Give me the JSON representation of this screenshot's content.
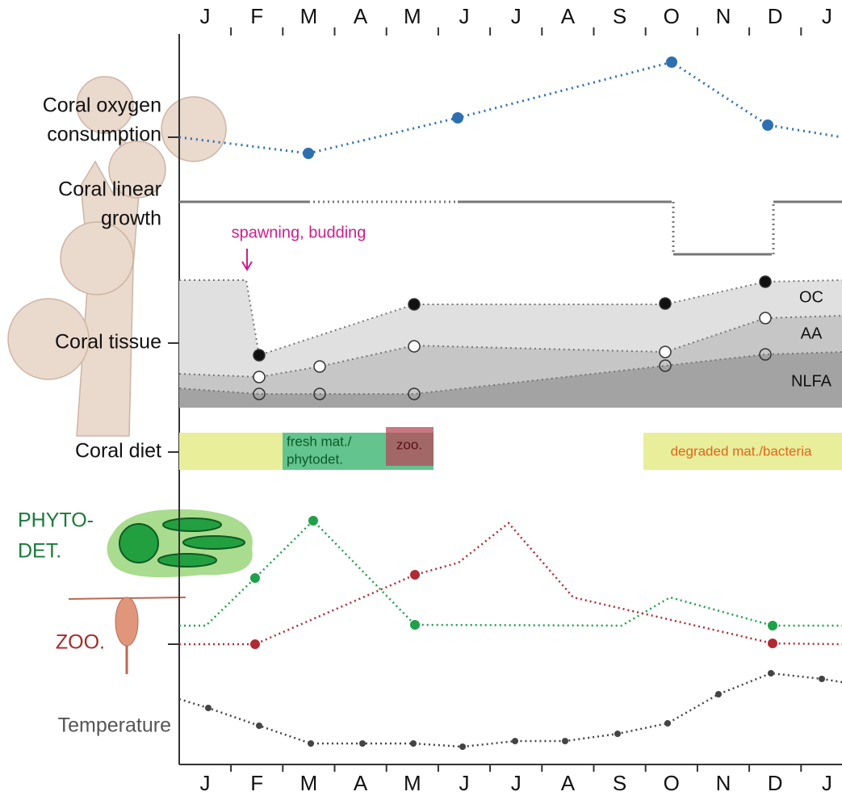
{
  "months": [
    "J",
    "F",
    "M",
    "A",
    "M",
    "J",
    "J",
    "A",
    "S",
    "O",
    "N",
    "D",
    "J"
  ],
  "rows": {
    "oxygen": [
      "Coral oxygen",
      "consumption"
    ],
    "growth": [
      "Coral linear",
      "growth"
    ],
    "tissue": "Coral tissue",
    "diet": "Coral diet",
    "phyto": [
      "PHYTO-",
      "DET."
    ],
    "zoo": "ZOO.",
    "temperature": "Temperature"
  },
  "annotation": "spawning, budding",
  "tissue_labels": [
    "OC",
    "AA",
    "NLFA"
  ],
  "diet_labels": {
    "fresh": [
      "fresh mat./",
      "phytodet."
    ],
    "zoo": "zoo.",
    "degraded": "degraded mat./bacteria"
  }
}
